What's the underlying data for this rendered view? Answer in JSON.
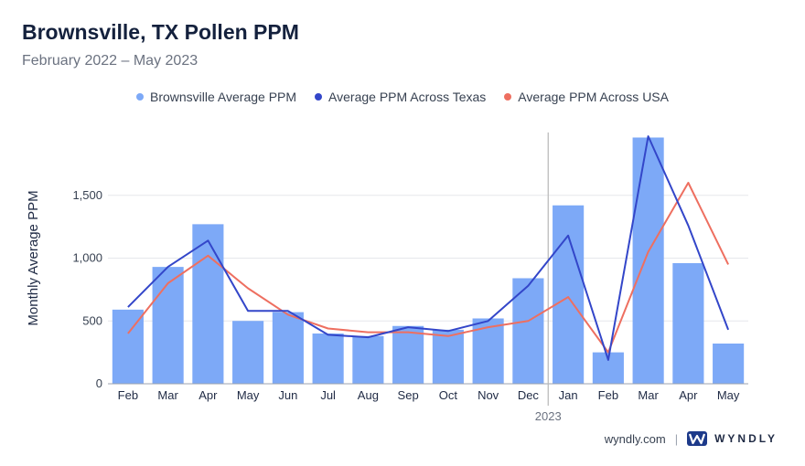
{
  "header": {
    "title": "Brownsville, TX Pollen PPM",
    "subtitle": "February 2022 – May 2023"
  },
  "footer": {
    "site": "wyndly.com",
    "brand": "WYNDLY"
  },
  "colors": {
    "bar": "#7da9f7",
    "texas": "#3346c9",
    "usa": "#ee6f60",
    "grid": "#e5e7eb",
    "divider": "#b8b8b8"
  },
  "chart_data": {
    "type": "bar",
    "title": "Brownsville, TX Pollen PPM",
    "subtitle": "February 2022 – May 2023",
    "ylabel": "Monthly Average PPM",
    "xlabel": "",
    "ylim": [
      0,
      2000
    ],
    "yticks": [
      0,
      500,
      1000,
      1500
    ],
    "ytick_labels": [
      "0",
      "500",
      "1,000",
      "1,500"
    ],
    "grid": true,
    "legend_position": "top-center",
    "categories": [
      "Feb",
      "Mar",
      "Apr",
      "May",
      "Jun",
      "Jul",
      "Aug",
      "Sep",
      "Oct",
      "Nov",
      "Dec",
      "Jan",
      "Feb",
      "Mar",
      "Apr",
      "May"
    ],
    "year_marker": {
      "label": "2023",
      "before_index": 11
    },
    "series": [
      {
        "name": "Brownsville Average PPM",
        "type": "bar",
        "values": [
          590,
          930,
          1270,
          500,
          570,
          400,
          380,
          460,
          430,
          520,
          840,
          1420,
          250,
          1960,
          960,
          320
        ]
      },
      {
        "name": "Average PPM Across Texas",
        "type": "line",
        "values": [
          610,
          930,
          1140,
          580,
          580,
          390,
          370,
          450,
          420,
          500,
          780,
          1180,
          190,
          1970,
          1260,
          430
        ]
      },
      {
        "name": "Average PPM Across USA",
        "type": "line",
        "values": [
          400,
          800,
          1020,
          760,
          550,
          440,
          410,
          410,
          380,
          450,
          500,
          690,
          250,
          1050,
          1600,
          950
        ]
      }
    ]
  }
}
